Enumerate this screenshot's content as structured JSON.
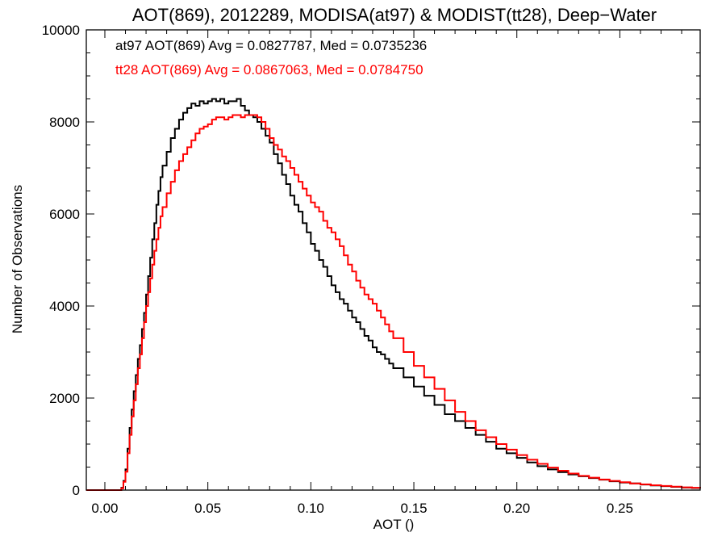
{
  "chart_data": {
    "type": "line",
    "title": "AOT(869), 2012289, MODISA(at97) & MODIST(tt28), Deep−Water",
    "xlabel": "AOT ()",
    "ylabel": "Number of Observations",
    "xlim": [
      -0.009,
      0.289
    ],
    "ylim": [
      0,
      10000
    ],
    "xticks": [
      0.0,
      0.05,
      0.1,
      0.15,
      0.2,
      0.25
    ],
    "xtick_labels": [
      "0.00",
      "0.05",
      "0.10",
      "0.15",
      "0.20",
      "0.25"
    ],
    "yticks": [
      0,
      2000,
      4000,
      6000,
      8000,
      10000
    ],
    "ytick_labels": [
      "0",
      "2000",
      "4000",
      "6000",
      "8000",
      "10000"
    ],
    "grid": false,
    "legend_position": "top-left",
    "annotations": [
      {
        "text": "at97 AOT(869) Avg = 0.0827787, Med = 0.0735236",
        "color": "#000000"
      },
      {
        "text": "tt28 AOT(869) Avg = 0.0867063, Med = 0.0784750",
        "color": "#ff0000"
      }
    ],
    "series": [
      {
        "color": "#000000",
        "points": [
          [
            -0.009,
            0
          ],
          [
            0.006,
            0
          ],
          [
            0.008,
            50
          ],
          [
            0.009,
            200
          ],
          [
            0.01,
            450
          ],
          [
            0.011,
            900
          ],
          [
            0.012,
            1350
          ],
          [
            0.013,
            1750
          ],
          [
            0.014,
            2150
          ],
          [
            0.015,
            2500
          ],
          [
            0.016,
            2850
          ],
          [
            0.017,
            3150
          ],
          [
            0.018,
            3500
          ],
          [
            0.019,
            3850
          ],
          [
            0.02,
            4250
          ],
          [
            0.021,
            4650
          ],
          [
            0.022,
            5050
          ],
          [
            0.023,
            5450
          ],
          [
            0.024,
            5800
          ],
          [
            0.025,
            6200
          ],
          [
            0.026,
            6500
          ],
          [
            0.027,
            6800
          ],
          [
            0.028,
            7050
          ],
          [
            0.03,
            7350
          ],
          [
            0.032,
            7650
          ],
          [
            0.034,
            7850
          ],
          [
            0.036,
            8050
          ],
          [
            0.038,
            8200
          ],
          [
            0.04,
            8300
          ],
          [
            0.042,
            8400
          ],
          [
            0.044,
            8350
          ],
          [
            0.046,
            8450
          ],
          [
            0.048,
            8400
          ],
          [
            0.05,
            8450
          ],
          [
            0.052,
            8500
          ],
          [
            0.054,
            8450
          ],
          [
            0.056,
            8500
          ],
          [
            0.058,
            8400
          ],
          [
            0.06,
            8450
          ],
          [
            0.062,
            8450
          ],
          [
            0.064,
            8500
          ],
          [
            0.066,
            8350
          ],
          [
            0.068,
            8250
          ],
          [
            0.07,
            8150
          ],
          [
            0.072,
            8100
          ],
          [
            0.074,
            8000
          ],
          [
            0.076,
            7850
          ],
          [
            0.078,
            7700
          ],
          [
            0.08,
            7550
          ],
          [
            0.082,
            7300
          ],
          [
            0.084,
            7100
          ],
          [
            0.086,
            6850
          ],
          [
            0.088,
            6650
          ],
          [
            0.09,
            6400
          ],
          [
            0.092,
            6200
          ],
          [
            0.094,
            6050
          ],
          [
            0.096,
            5800
          ],
          [
            0.098,
            5600
          ],
          [
            0.1,
            5350
          ],
          [
            0.102,
            5200
          ],
          [
            0.104,
            5000
          ],
          [
            0.106,
            4850
          ],
          [
            0.108,
            4650
          ],
          [
            0.11,
            4450
          ],
          [
            0.112,
            4300
          ],
          [
            0.114,
            4150
          ],
          [
            0.116,
            4050
          ],
          [
            0.118,
            3900
          ],
          [
            0.12,
            3750
          ],
          [
            0.122,
            3650
          ],
          [
            0.124,
            3500
          ],
          [
            0.126,
            3350
          ],
          [
            0.128,
            3250
          ],
          [
            0.13,
            3100
          ],
          [
            0.132,
            3000
          ],
          [
            0.134,
            2950
          ],
          [
            0.136,
            2850
          ],
          [
            0.138,
            2750
          ],
          [
            0.14,
            2650
          ],
          [
            0.145,
            2450
          ],
          [
            0.15,
            2250
          ],
          [
            0.155,
            2050
          ],
          [
            0.16,
            1850
          ],
          [
            0.165,
            1650
          ],
          [
            0.17,
            1500
          ],
          [
            0.175,
            1350
          ],
          [
            0.18,
            1200
          ],
          [
            0.185,
            1050
          ],
          [
            0.19,
            900
          ],
          [
            0.195,
            800
          ],
          [
            0.2,
            700
          ],
          [
            0.205,
            600
          ],
          [
            0.21,
            520
          ],
          [
            0.215,
            450
          ],
          [
            0.22,
            390
          ],
          [
            0.225,
            340
          ],
          [
            0.23,
            300
          ],
          [
            0.235,
            260
          ],
          [
            0.24,
            225
          ],
          [
            0.245,
            190
          ],
          [
            0.25,
            165
          ],
          [
            0.255,
            145
          ],
          [
            0.26,
            120
          ],
          [
            0.265,
            100
          ],
          [
            0.27,
            85
          ],
          [
            0.275,
            70
          ],
          [
            0.28,
            55
          ],
          [
            0.285,
            45
          ],
          [
            0.289,
            40
          ]
        ]
      },
      {
        "color": "#ff0000",
        "points": [
          [
            -0.009,
            0
          ],
          [
            0.006,
            0
          ],
          [
            0.008,
            40
          ],
          [
            0.009,
            180
          ],
          [
            0.01,
            400
          ],
          [
            0.011,
            800
          ],
          [
            0.012,
            1200
          ],
          [
            0.013,
            1600
          ],
          [
            0.014,
            1950
          ],
          [
            0.015,
            2300
          ],
          [
            0.016,
            2650
          ],
          [
            0.017,
            2950
          ],
          [
            0.018,
            3300
          ],
          [
            0.019,
            3650
          ],
          [
            0.02,
            4000
          ],
          [
            0.021,
            4300
          ],
          [
            0.022,
            4600
          ],
          [
            0.023,
            4900
          ],
          [
            0.024,
            5200
          ],
          [
            0.025,
            5450
          ],
          [
            0.026,
            5700
          ],
          [
            0.027,
            5950
          ],
          [
            0.028,
            6150
          ],
          [
            0.03,
            6450
          ],
          [
            0.032,
            6700
          ],
          [
            0.034,
            6950
          ],
          [
            0.036,
            7150
          ],
          [
            0.038,
            7300
          ],
          [
            0.04,
            7450
          ],
          [
            0.042,
            7600
          ],
          [
            0.044,
            7750
          ],
          [
            0.046,
            7850
          ],
          [
            0.048,
            7900
          ],
          [
            0.05,
            7950
          ],
          [
            0.052,
            8050
          ],
          [
            0.054,
            8100
          ],
          [
            0.056,
            8100
          ],
          [
            0.058,
            8050
          ],
          [
            0.06,
            8100
          ],
          [
            0.062,
            8150
          ],
          [
            0.064,
            8150
          ],
          [
            0.066,
            8100
          ],
          [
            0.068,
            8150
          ],
          [
            0.07,
            8150
          ],
          [
            0.072,
            8150
          ],
          [
            0.074,
            8100
          ],
          [
            0.076,
            8000
          ],
          [
            0.078,
            7850
          ],
          [
            0.08,
            7650
          ],
          [
            0.082,
            7500
          ],
          [
            0.084,
            7400
          ],
          [
            0.086,
            7250
          ],
          [
            0.088,
            7150
          ],
          [
            0.09,
            7000
          ],
          [
            0.092,
            6850
          ],
          [
            0.094,
            6700
          ],
          [
            0.096,
            6550
          ],
          [
            0.098,
            6400
          ],
          [
            0.1,
            6250
          ],
          [
            0.102,
            6150
          ],
          [
            0.104,
            6050
          ],
          [
            0.106,
            5850
          ],
          [
            0.108,
            5700
          ],
          [
            0.11,
            5600
          ],
          [
            0.112,
            5450
          ],
          [
            0.114,
            5300
          ],
          [
            0.116,
            5100
          ],
          [
            0.118,
            4900
          ],
          [
            0.12,
            4750
          ],
          [
            0.122,
            4550
          ],
          [
            0.124,
            4400
          ],
          [
            0.126,
            4250
          ],
          [
            0.128,
            4150
          ],
          [
            0.13,
            4050
          ],
          [
            0.132,
            3900
          ],
          [
            0.134,
            3750
          ],
          [
            0.136,
            3600
          ],
          [
            0.138,
            3450
          ],
          [
            0.14,
            3300
          ],
          [
            0.145,
            3000
          ],
          [
            0.15,
            2700
          ],
          [
            0.155,
            2450
          ],
          [
            0.16,
            2200
          ],
          [
            0.165,
            1950
          ],
          [
            0.17,
            1700
          ],
          [
            0.175,
            1500
          ],
          [
            0.18,
            1300
          ],
          [
            0.185,
            1150
          ],
          [
            0.19,
            1000
          ],
          [
            0.195,
            880
          ],
          [
            0.2,
            760
          ],
          [
            0.205,
            660
          ],
          [
            0.21,
            570
          ],
          [
            0.215,
            490
          ],
          [
            0.22,
            420
          ],
          [
            0.225,
            360
          ],
          [
            0.23,
            310
          ],
          [
            0.235,
            270
          ],
          [
            0.24,
            230
          ],
          [
            0.245,
            200
          ],
          [
            0.25,
            170
          ],
          [
            0.255,
            145
          ],
          [
            0.26,
            125
          ],
          [
            0.265,
            105
          ],
          [
            0.27,
            90
          ],
          [
            0.275,
            75
          ],
          [
            0.28,
            60
          ],
          [
            0.285,
            50
          ],
          [
            0.289,
            45
          ]
        ]
      }
    ]
  }
}
